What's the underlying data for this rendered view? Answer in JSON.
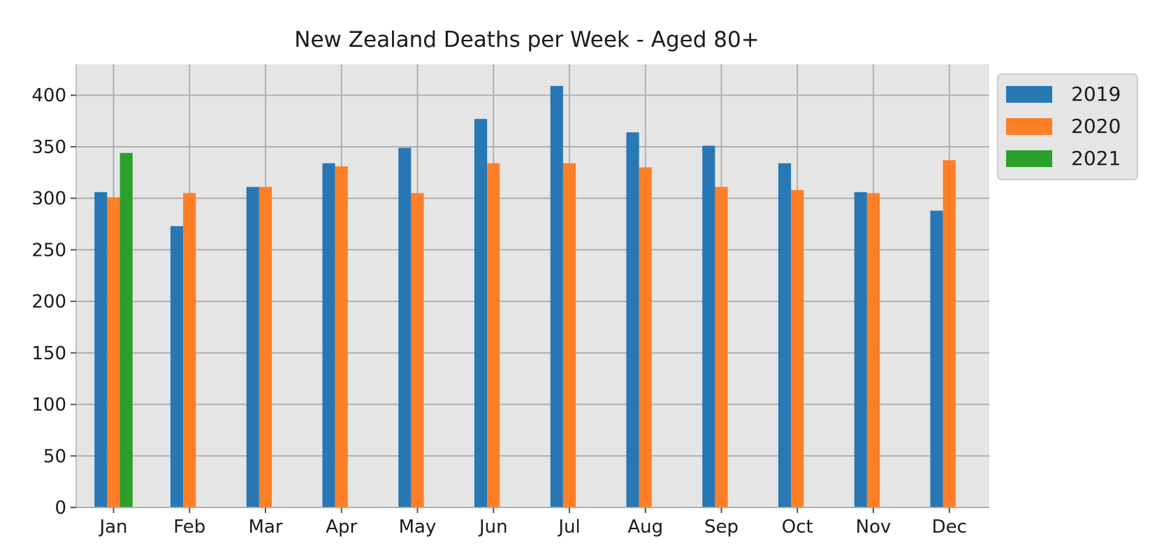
{
  "chart_data": {
    "type": "bar",
    "title": "New Zealand Deaths per Week - Aged 80+",
    "xlabel": "",
    "ylabel": "",
    "categories": [
      "Jan",
      "Feb",
      "Mar",
      "Apr",
      "May",
      "Jun",
      "Jul",
      "Aug",
      "Sep",
      "Oct",
      "Nov",
      "Dec"
    ],
    "series": [
      {
        "name": "2019",
        "color": "#2878b5",
        "values": [
          306,
          273,
          311,
          334,
          349,
          377,
          409,
          364,
          351,
          334,
          306,
          288
        ]
      },
      {
        "name": "2020",
        "color": "#ff7f27",
        "values": [
          301,
          305,
          311,
          331,
          305,
          334,
          334,
          330,
          311,
          308,
          305,
          337
        ]
      },
      {
        "name": "2021",
        "color": "#2ca02c",
        "values": [
          344,
          null,
          null,
          null,
          null,
          null,
          null,
          null,
          null,
          null,
          null,
          null
        ]
      }
    ],
    "ylim": [
      0,
      430
    ],
    "yticks": [
      0,
      50,
      100,
      150,
      200,
      250,
      300,
      350,
      400
    ],
    "grid": true,
    "legend_position": "outside-top-right",
    "colors": {
      "plot_background": "#e5e5e5",
      "grid": "#b0b0b0"
    }
  }
}
